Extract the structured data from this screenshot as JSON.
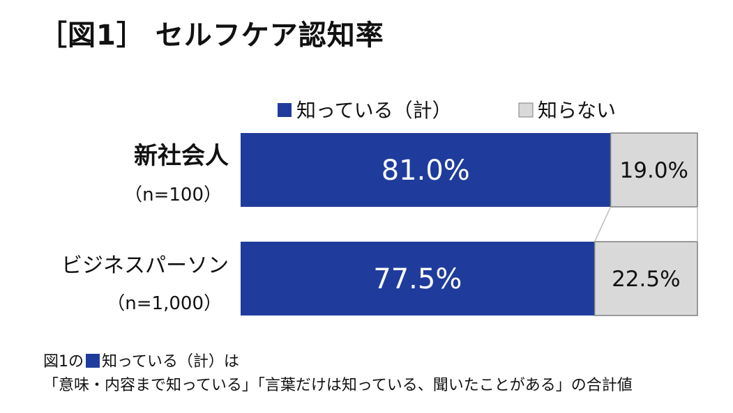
{
  "title": "［図1］ セルフケア認知率",
  "colors": {
    "known": "#1f3c9c",
    "unknown": "#d9d9d9",
    "unknown_border": "#7f7f7f",
    "connector": "#bfbfbf"
  },
  "footnote": {
    "line1_prefix": "図1の",
    "line1_suffix": "知っている（計）は",
    "line2": "「意味・内容まで知っている」「言葉だけは知っている、聞いたことがある」の合計値"
  },
  "chart_data": {
    "type": "bar",
    "orientation": "horizontal",
    "stacked": "percent",
    "title": "［図1］ セルフケア認知率",
    "legend_position": "top",
    "xlim": [
      0,
      100
    ],
    "grid": false,
    "categories": [
      {
        "label": "新社会人",
        "n": "（n=100）"
      },
      {
        "label": "ビジネスパーソン",
        "n": "（n=1,000）"
      }
    ],
    "series": [
      {
        "name": "知っている（計）",
        "values": [
          81.0,
          77.5
        ],
        "labels": [
          "81.0%",
          "77.5%"
        ]
      },
      {
        "name": "知らない",
        "values": [
          19.0,
          22.5
        ],
        "labels": [
          "19.0%",
          "22.5%"
        ]
      }
    ]
  }
}
